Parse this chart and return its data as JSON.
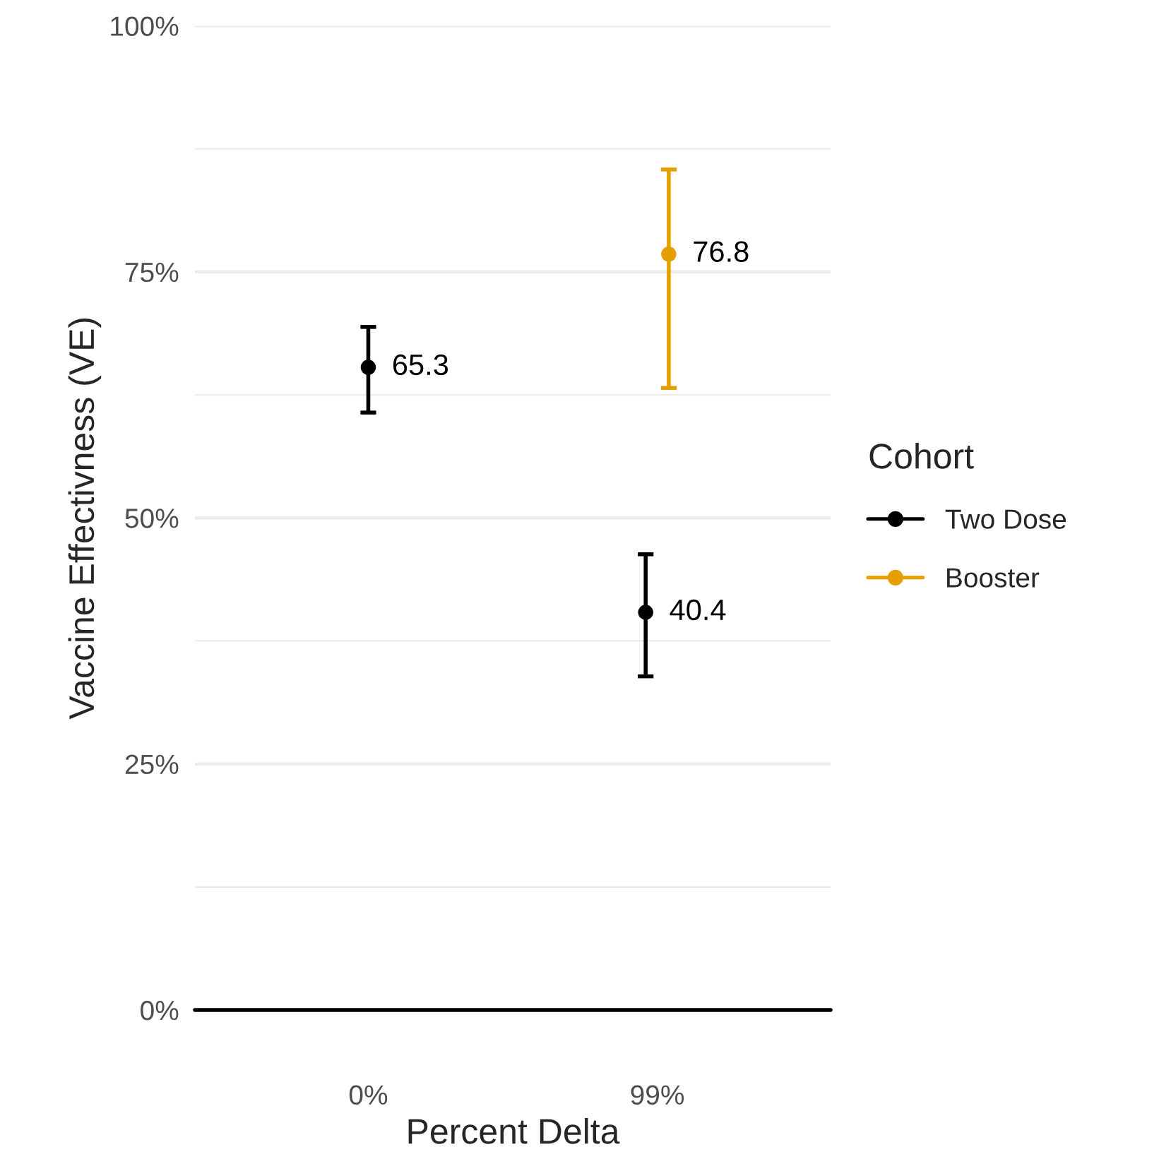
{
  "chart_data": {
    "type": "scatter",
    "xlabel": "Percent Delta",
    "ylabel": "Vaccine Effectivness (VE)",
    "legend_title": "Cohort",
    "categories": [
      "0%",
      "99%"
    ],
    "series": [
      {
        "name": "Two Dose",
        "color": "#000000",
        "values": [
          65.3,
          40.4
        ],
        "errors": [
          [
            60.7,
            69.4
          ],
          [
            33.9,
            46.3
          ]
        ]
      },
      {
        "name": "Booster",
        "color": "#e69f00",
        "values": [
          null,
          76.8
        ],
        "errors": [
          null,
          [
            63.2,
            85.4
          ]
        ]
      }
    ],
    "ylim": [
      0,
      100
    ],
    "yticks": [
      {
        "value": 0,
        "label": "0%"
      },
      {
        "value": 12.5,
        "label": null
      },
      {
        "value": 25,
        "label": "25%"
      },
      {
        "value": 37.5,
        "label": null
      },
      {
        "value": 50,
        "label": "50%"
      },
      {
        "value": 62.5,
        "label": null
      },
      {
        "value": 75,
        "label": "75%"
      },
      {
        "value": 87.5,
        "label": null
      },
      {
        "value": 100,
        "label": "100%"
      }
    ],
    "ref_lines": [
      {
        "axis": "y",
        "value": 0,
        "color": "#000000"
      }
    ],
    "grid": "y",
    "legend": "right",
    "marker": "circle",
    "data_labels": true
  }
}
